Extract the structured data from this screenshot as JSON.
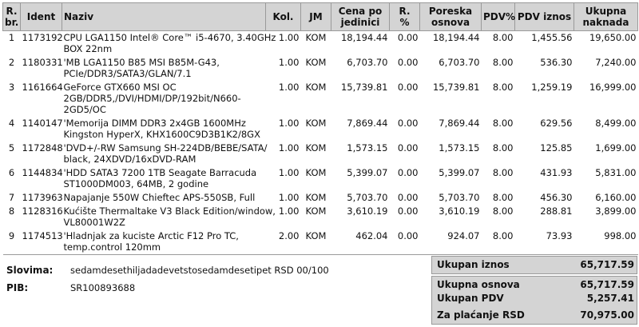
{
  "columns": {
    "rbr": [
      "R.",
      "br."
    ],
    "ident": "Ident",
    "naziv": "Naziv",
    "kol": "Kol.",
    "jm": "JM",
    "cena": [
      "Cena po",
      "jedinici"
    ],
    "rabat": [
      "R.",
      "%"
    ],
    "osnova": [
      "Poreska",
      "osnova"
    ],
    "pdv": "PDV%",
    "pdv_iznos": "PDV iznos",
    "ukupno": [
      "Ukupna",
      "naknada"
    ]
  },
  "rows": [
    {
      "rbr": "1",
      "ident": "1173192",
      "naziv": [
        "CPU LGA1150 Intel® Core™ i5-4670, 3.40GHz",
        "BOX 22nm"
      ],
      "kol": "1.00",
      "jm": "KOM",
      "cena": "18,194.44",
      "rabat": "0.00",
      "osnova": "18,194.44",
      "pdv": "8.00",
      "pdv_iznos": "1,455.56",
      "ukupno": "19,650.00"
    },
    {
      "rbr": "2",
      "ident": "1180331",
      "naziv": [
        "'MB LGA1150 B85 MSI B85M-G43,",
        "PCIe/DDR3/SATA3/GLAN/7.1"
      ],
      "kol": "1.00",
      "jm": "KOM",
      "cena": "6,703.70",
      "rabat": "0.00",
      "osnova": "6,703.70",
      "pdv": "8.00",
      "pdv_iznos": "536.30",
      "ukupno": "7,240.00"
    },
    {
      "rbr": "3",
      "ident": "1161664",
      "naziv": [
        "GeForce GTX660 MSI OC",
        "2GB/DDR5,/DVI/HDMI/DP/192bit/N660-",
        "2GD5/OC"
      ],
      "kol": "1.00",
      "jm": "KOM",
      "cena": "15,739.81",
      "rabat": "0.00",
      "osnova": "15,739.81",
      "pdv": "8.00",
      "pdv_iznos": "1,259.19",
      "ukupno": "16,999.00"
    },
    {
      "rbr": "4",
      "ident": "1140147",
      "naziv": [
        "'Memorija DIMM DDR3 2x4GB 1600MHz",
        "Kingston HyperX, KHX1600C9D3B1K2/8GX"
      ],
      "kol": "1.00",
      "jm": "KOM",
      "cena": "7,869.44",
      "rabat": "0.00",
      "osnova": "7,869.44",
      "pdv": "8.00",
      "pdv_iznos": "629.56",
      "ukupno": "8,499.00"
    },
    {
      "rbr": "5",
      "ident": "1172848",
      "naziv": [
        "'DVD+/-RW Samsung SH-224DB/BEBE/SATA/",
        "black, 24XDVD/16xDVD-RAM"
      ],
      "kol": "1.00",
      "jm": "KOM",
      "cena": "1,573.15",
      "rabat": "0.00",
      "osnova": "1,573.15",
      "pdv": "8.00",
      "pdv_iznos": "125.85",
      "ukupno": "1,699.00"
    },
    {
      "rbr": "6",
      "ident": "1144834",
      "naziv": [
        "'HDD SATA3 7200 1TB Seagate Barracuda",
        "ST1000DM003, 64MB, 2 godine"
      ],
      "kol": "1.00",
      "jm": "KOM",
      "cena": "5,399.07",
      "rabat": "0.00",
      "osnova": "5,399.07",
      "pdv": "8.00",
      "pdv_iznos": "431.93",
      "ukupno": "5,831.00"
    },
    {
      "rbr": "7",
      "ident": "1173963",
      "naziv": [
        "Napajanje 550W Chieftec APS-550SB, Full"
      ],
      "kol": "1.00",
      "jm": "KOM",
      "cena": "5,703.70",
      "rabat": "0.00",
      "osnova": "5,703.70",
      "pdv": "8.00",
      "pdv_iznos": "456.30",
      "ukupno": "6,160.00"
    },
    {
      "rbr": "8",
      "ident": "1128316",
      "naziv": [
        "Kućište Thermaltake V3 Black Edition/window,",
        "VL80001W2Z"
      ],
      "kol": "1.00",
      "jm": "KOM",
      "cena": "3,610.19",
      "rabat": "0.00",
      "osnova": "3,610.19",
      "pdv": "8.00",
      "pdv_iznos": "288.81",
      "ukupno": "3,899.00"
    },
    {
      "rbr": "9",
      "ident": "1174513",
      "naziv": [
        "'Hladnjak za kuciste Arctic F12 Pro TC,",
        "temp.control 120mm"
      ],
      "kol": "2.00",
      "jm": "KOM",
      "cena": "462.04",
      "rabat": "0.00",
      "osnova": "924.07",
      "pdv": "8.00",
      "pdv_iznos": "73.93",
      "ukupno": "998.00"
    }
  ],
  "footer": {
    "slovima_label": "Slovima:",
    "slovima_value": "sedamdesethiljadadevetstosedamdesetipet RSD 00/100",
    "pib_label": "PIB:",
    "pib_value": "SR100893688"
  },
  "totals": {
    "ukupan_iznos_label": "Ukupan iznos",
    "ukupan_iznos_value": "65,717.59",
    "ukupna_osnova_label": "Ukupna osnova",
    "ukupna_osnova_value": "65,717.59",
    "ukupan_pdv_label": "Ukupan PDV",
    "ukupan_pdv_value": "5,257.41",
    "za_placanje_label": "Za plaćanje  RSD",
    "za_placanje_value": "70,975.00"
  }
}
